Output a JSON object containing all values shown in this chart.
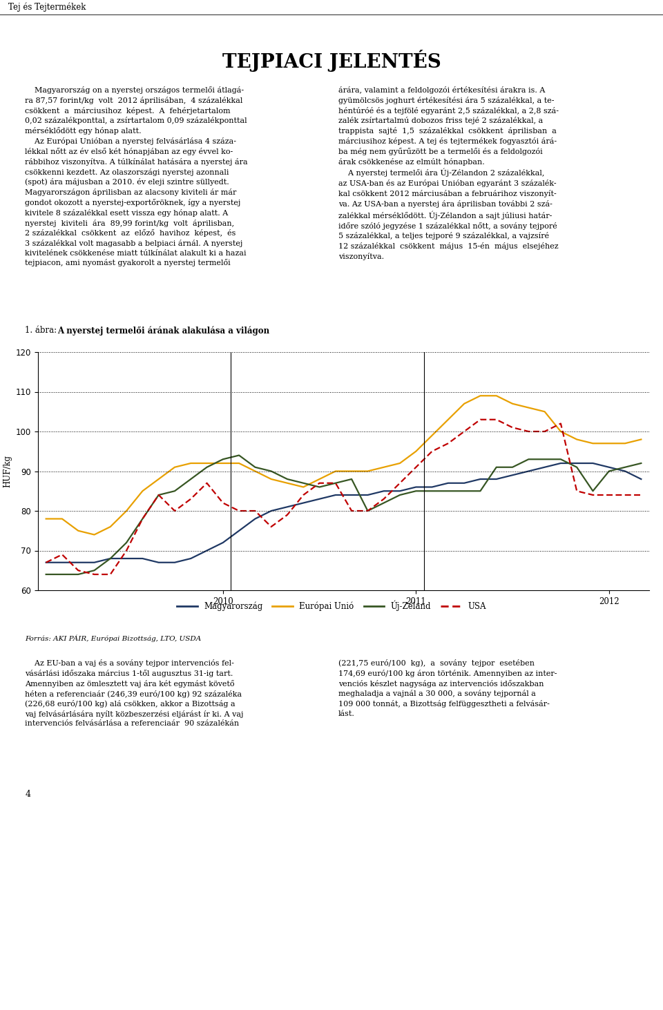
{
  "title": "TEJPIACI JELENTÉS",
  "ylabel": "HUF/kg",
  "source": "Forrás: AKI PÁIR, Európai Bizottság, LTO, USDA",
  "header_text": "Tej és Tejtermékek",
  "figure_label_normal": "1. ábra: ",
  "figure_label_bold": "A nyerstej termelői árának alakulása a világon",
  "page_number": "4",
  "ylim": [
    60,
    120
  ],
  "yticks": [
    60,
    70,
    80,
    90,
    100,
    110,
    120
  ],
  "colors": {
    "magyarorszag": "#1f3864",
    "europai_unio": "#e8a000",
    "uj_zeland": "#375623",
    "usa": "#c00000"
  },
  "magyarorszag": [
    67,
    67,
    67,
    67,
    68,
    68,
    68,
    67,
    67,
    68,
    70,
    72,
    75,
    78,
    80,
    81,
    82,
    83,
    84,
    84,
    84,
    85,
    85,
    86,
    86,
    87,
    87,
    88,
    88,
    89,
    90,
    91,
    92,
    92,
    92,
    91,
    90,
    88
  ],
  "europai_unio": [
    78,
    78,
    75,
    74,
    76,
    80,
    85,
    88,
    91,
    92,
    92,
    92,
    92,
    90,
    88,
    87,
    86,
    88,
    90,
    90,
    90,
    91,
    92,
    95,
    99,
    103,
    107,
    109,
    109,
    107,
    106,
    105,
    100,
    98,
    97,
    97,
    97,
    98
  ],
  "uj_zeland": [
    64,
    64,
    64,
    65,
    68,
    72,
    78,
    84,
    85,
    88,
    91,
    93,
    94,
    91,
    90,
    88,
    87,
    86,
    87,
    88,
    80,
    82,
    84,
    85,
    85,
    85,
    85,
    85,
    91,
    91,
    93,
    93,
    93,
    91,
    85,
    90,
    91,
    92
  ],
  "usa": [
    67,
    69,
    65,
    64,
    64,
    70,
    78,
    84,
    80,
    83,
    87,
    82,
    80,
    80,
    76,
    79,
    84,
    87,
    87,
    80,
    80,
    83,
    87,
    91,
    95,
    97,
    100,
    103,
    103,
    101,
    100,
    100,
    102,
    85,
    84,
    84,
    84,
    84
  ],
  "left_text_top": [
    "    Magyarország on a nyerstej országos termelői átlagá-",
    "ra 87,57 forint/kg  volt  2012 áprilisában,  4 százalékkal",
    "csökkent  a  márciusihoz  képest.  A  fehérjetartalom",
    "0,02 százalékponttal, a zsírtartalom 0,09 százalékponttal",
    "mérséklődött egy hónap alatt.",
    "    Az Európai Unióban a nyerstej felvásárlása 4 száza-",
    "lékkal nőtt az év első két hónapjában az egy évvel ko-",
    "rábbihoz viszonyítva. A túlkínálat hatására a nyerstej ára",
    "csökkenni kezdett. Az olaszországi nyerstej azonnali",
    "(spot) ára májusban a 2010. év eleji szintre süllyedt.",
    "Magyarországon áprilisban az alacsony kiviteli ár már",
    "gondot okozott a nyerstej-exportőröknek, így a nyerstej",
    "kivitele 8 százalékkal esett vissza egy hónap alatt. A",
    "nyerstej  kiviteli  ára  89,99 forint/kg  volt  áprilisban,",
    "2 százalékkal  csökkent  az  előző  havihoz  képest,  és",
    "3 százalékkal volt magasabb a belpiaci árnál. A nyerstej",
    "kivitelének csökkenése miatt túlkínálat alakult ki a hazai",
    "tejpiacon, ami nyomást gyakorolt a nyerstej termelői"
  ],
  "right_text_top": [
    "árára, valamint a feldolgozói értékesítési árakra is. A",
    "gyümölcsös joghurt értékesítési ára 5 százalékkal, a te-",
    "héntúróé és a tejfölé egyaránt 2,5 százalékkal, a 2,8 szá-",
    "zalék zsírtartalmú dobozos friss tejé 2 százalékkal, a",
    "trappista  sajté  1,5  százalékkal  csökkent  áprilisban  a",
    "márciusihoz képest. A tej és tejtermékek fogyasztói árá-",
    "ba még nem gyűrűzött be a termelői és a feldolgozói",
    "árak csökkenése az elmúlt hónapban.",
    "    A nyerstej termelői ára Új-Zélandon 2 százalékkal,",
    "az USA-ban és az Európai Unióban egyaránt 3 százalék-",
    "kal csökkent 2012 márciusában a februárihoz viszonyít-",
    "va. Az USA-ban a nyerstej ára áprilisban további 2 szá-",
    "zalékkal mérséklődött. Új-Zélandon a sajt júliusi határ-",
    "időre szóló jegyzése 1 százalékkal nőtt, a sovány tejporé",
    "5 százalékkal, a teljes tejporé 9 százalékkal, a vajzsíré",
    "12 százalékkal  csökkent  május  15-én  május  elsejéhez",
    "viszonyítva."
  ],
  "left_text_bottom": [
    "    Az EU-ban a vaj és a sovány tejpor intervenciós fel-",
    "vásárlási időszaka március 1-től augusztus 31-ig tart.",
    "Amennyiben az ömlesztett vaj ára két egymást követő",
    "héten a referenciaár (246,39 euró/100 kg) 92 százaléka",
    "(226,68 euró/100 kg) alá csökken, akkor a Bizottság a",
    "vaj felvásárlására nyílt közbeszerzési eljárást ír ki. A vaj",
    "intervenciós felvásárlása a referenciaár  90 százalékán"
  ],
  "right_text_bottom": [
    "(221,75 euró/100  kg),  a  sovány  tejpor  esetében",
    "174,69 euró/100 kg áron történik. Amennyiben az inter-",
    "venciós készlet nagysága az intervenciós időszakban",
    "meghaladja a vajnál a 30 000, a sovány tejpornál a",
    "109 000 tonnát, a Bizottság felfüggesztheti a felvásár-",
    "lást."
  ]
}
